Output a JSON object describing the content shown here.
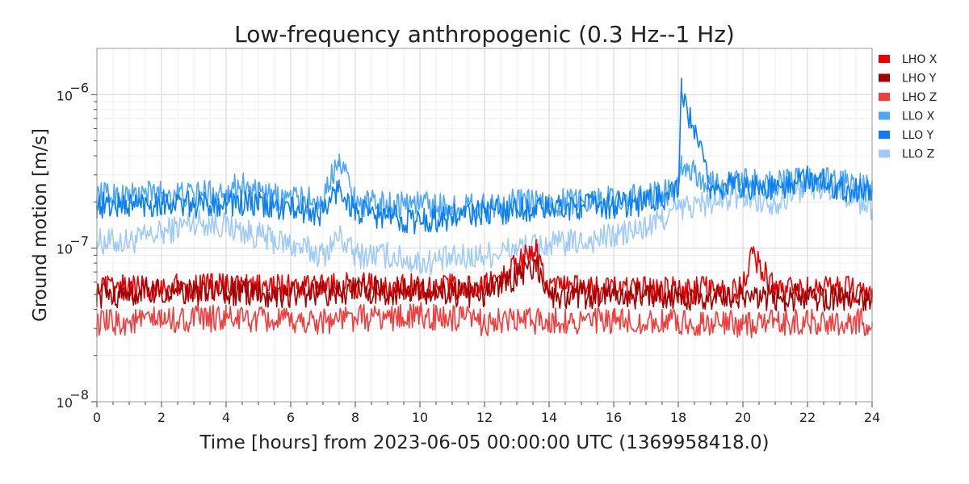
{
  "chart_data": {
    "type": "line",
    "title": "Low-frequency anthropogenic (0.3 Hz--1 Hz)",
    "xlabel": "Time [hours] from 2023-06-05 00:00:00 UTC (1369958418.0)",
    "ylabel": "Ground motion [m/s]",
    "xlim": [
      0,
      24
    ],
    "ylim": [
      1e-08,
      2e-06
    ],
    "yscale": "log",
    "x_ticks": [
      0,
      2,
      4,
      6,
      8,
      10,
      12,
      14,
      16,
      18,
      20,
      22,
      24
    ],
    "x_tick_labels": [
      "0",
      "2",
      "4",
      "6",
      "8",
      "10",
      "12",
      "14",
      "16",
      "18",
      "20",
      "22",
      "24"
    ],
    "y_ticks": [
      1e-08,
      1e-07,
      1e-06
    ],
    "y_tick_labels": [
      {
        "base": "10",
        "exp": "−8"
      },
      {
        "base": "10",
        "exp": "−7"
      },
      {
        "base": "10",
        "exp": "−6"
      }
    ],
    "grid": true,
    "legend_position": "outside-top-right",
    "series": [
      {
        "name": "LLO Z",
        "color": "#9fcbfa",
        "x": [
          0,
          1,
          2,
          3,
          4,
          5,
          6,
          7,
          7.5,
          8,
          9,
          10,
          11,
          12,
          13,
          14,
          15,
          16,
          17,
          18,
          19,
          20,
          21,
          22,
          23,
          24
        ],
        "y": [
          1.1e-07,
          1.1e-07,
          1.25e-07,
          1.5e-07,
          1.4e-07,
          1.2e-07,
          1.05e-07,
          9e-08,
          1.2e-07,
          9e-08,
          9e-08,
          8e-08,
          8.5e-08,
          9e-08,
          1e-07,
          1.05e-07,
          1.1e-07,
          1.2e-07,
          1.35e-07,
          1.8e-07,
          2e-07,
          2.2e-07,
          2e-07,
          2.6e-07,
          2.4e-07,
          1.8e-07
        ]
      },
      {
        "name": "LLO X",
        "color": "#4da6f8",
        "x": [
          0,
          1,
          2,
          3,
          4,
          4.5,
          5,
          6,
          7,
          7.5,
          8,
          9,
          10,
          11,
          12,
          13,
          14,
          15,
          16,
          17,
          18,
          18.1,
          19,
          20,
          21,
          22,
          23,
          24
        ],
        "y": [
          2.2e-07,
          2.2e-07,
          2.3e-07,
          2.2e-07,
          2.4e-07,
          2.6e-07,
          2.2e-07,
          2.1e-07,
          2e-07,
          4.1e-07,
          2e-07,
          1.9e-07,
          2e-07,
          1.8e-07,
          1.9e-07,
          2e-07,
          1.9e-07,
          2.1e-07,
          2.1e-07,
          2.2e-07,
          2.4e-07,
          3.4e-07,
          2.6e-07,
          2.7e-07,
          2.6e-07,
          2.8e-07,
          2.7e-07,
          2.4e-07
        ]
      },
      {
        "name": "LLO Y",
        "color": "#0b7ef3",
        "x": [
          0,
          1,
          2,
          3,
          4,
          5,
          6,
          7,
          7.5,
          8,
          9,
          10,
          11,
          12,
          13,
          14,
          15,
          16,
          17,
          18,
          18.1,
          19,
          20,
          21,
          22,
          23,
          24
        ],
        "y": [
          1.9e-07,
          1.9e-07,
          2e-07,
          1.9e-07,
          2e-07,
          1.9e-07,
          1.8e-07,
          1.7e-07,
          2.5e-07,
          1.7e-07,
          1.6e-07,
          1.5e-07,
          1.6e-07,
          1.7e-07,
          1.8e-07,
          1.8e-07,
          1.9e-07,
          1.9e-07,
          2e-07,
          2.3e-07,
          1.05e-06,
          2.5e-07,
          2.6e-07,
          2.4e-07,
          2.9e-07,
          2.5e-07,
          2.3e-07
        ]
      },
      {
        "name": "LHO Z",
        "color": "#f33d3d",
        "x": [
          0,
          2,
          4,
          6,
          8,
          10,
          12,
          14,
          16,
          18,
          20,
          22,
          24
        ],
        "y": [
          3.2e-08,
          3.4e-08,
          3.5e-08,
          3.3e-08,
          3.5e-08,
          3.6e-08,
          3.3e-08,
          3.4e-08,
          3.3e-08,
          3.3e-08,
          3.2e-08,
          3.3e-08,
          3.3e-08
        ]
      },
      {
        "name": "LHO X",
        "color": "#ea0000",
        "x": [
          0,
          2,
          4,
          6,
          8,
          10,
          12,
          13.6,
          14,
          16,
          18,
          20,
          20.3,
          21,
          22,
          24
        ],
        "y": [
          5.4e-08,
          5.6e-08,
          5.6e-08,
          5.5e-08,
          5.7e-08,
          5.6e-08,
          5.5e-08,
          9.5e-08,
          5.4e-08,
          5.4e-08,
          5.3e-08,
          5.4e-08,
          9.2e-08,
          5.3e-08,
          5.4e-08,
          5.3e-08
        ]
      },
      {
        "name": "LHO Y",
        "color": "#a30000",
        "x": [
          0,
          2,
          4,
          6,
          8,
          10,
          12,
          13.6,
          14,
          16,
          18,
          20,
          22,
          24
        ],
        "y": [
          5e-08,
          5.1e-08,
          5.2e-08,
          5e-08,
          5.3e-08,
          5.2e-08,
          5e-08,
          7.8e-08,
          4.9e-08,
          4.9e-08,
          4.8e-08,
          4.8e-08,
          4.8e-08,
          4.8e-08
        ]
      }
    ],
    "legend": [
      {
        "name": "LHO X",
        "color": "#ea0000"
      },
      {
        "name": "LHO Y",
        "color": "#a30000"
      },
      {
        "name": "LHO Z",
        "color": "#f33d3d"
      },
      {
        "name": "LLO X",
        "color": "#4da6f8"
      },
      {
        "name": "LLO Y",
        "color": "#0b7ef3"
      },
      {
        "name": "LLO Z",
        "color": "#9fcbfa"
      }
    ]
  }
}
